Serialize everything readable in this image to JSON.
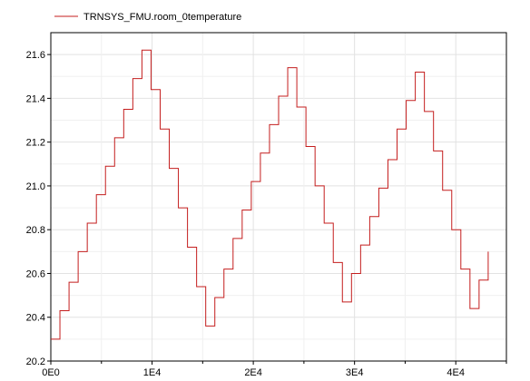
{
  "chart_data": {
    "type": "line",
    "step": true,
    "title": "",
    "xlabel": "",
    "ylabel": "",
    "xlim": [
      0,
      45000
    ],
    "ylim": [
      20.2,
      21.7
    ],
    "x_ticks": [
      0,
      10000,
      20000,
      30000,
      40000
    ],
    "x_tick_labels": [
      "0E0",
      "1E4",
      "2E4",
      "3E4",
      "4E4"
    ],
    "x_minor_ticks": [
      5000,
      15000,
      25000,
      35000,
      45000
    ],
    "y_ticks": [
      20.2,
      20.4,
      20.6,
      20.8,
      21.0,
      21.2,
      21.4,
      21.6
    ],
    "y_tick_labels": [
      "20.2",
      "20.4",
      "20.6",
      "20.8",
      "21.0",
      "21.2",
      "21.4",
      "21.6"
    ],
    "grid": true,
    "legend": "top-left",
    "series": [
      {
        "name": "TRNSYS_FMU.room_0temperature",
        "color": "#c41e1e",
        "x": [
          0,
          900,
          1800,
          2700,
          3600,
          4500,
          5400,
          6300,
          7200,
          8100,
          9000,
          9900,
          10800,
          11700,
          12600,
          13500,
          14400,
          15300,
          16200,
          17100,
          18000,
          18900,
          19800,
          20700,
          21600,
          22500,
          23400,
          24300,
          25200,
          26100,
          27000,
          27900,
          28800,
          29700,
          30600,
          31500,
          32400,
          33300,
          34200,
          35100,
          36000,
          36900,
          37800,
          38700,
          39600,
          40500,
          41400,
          42300,
          43200
        ],
        "y": [
          20.3,
          20.43,
          20.56,
          20.7,
          20.83,
          20.96,
          21.09,
          21.22,
          21.35,
          21.49,
          21.62,
          21.44,
          21.26,
          21.08,
          20.9,
          20.72,
          20.54,
          20.36,
          20.49,
          20.62,
          20.76,
          20.89,
          21.02,
          21.15,
          21.28,
          21.41,
          21.54,
          21.36,
          21.18,
          21.0,
          20.83,
          20.65,
          20.47,
          20.6,
          20.73,
          20.86,
          20.99,
          21.12,
          21.26,
          21.39,
          21.52,
          21.34,
          21.16,
          20.98,
          20.8,
          20.62,
          20.44,
          20.57,
          20.7
        ]
      }
    ]
  }
}
